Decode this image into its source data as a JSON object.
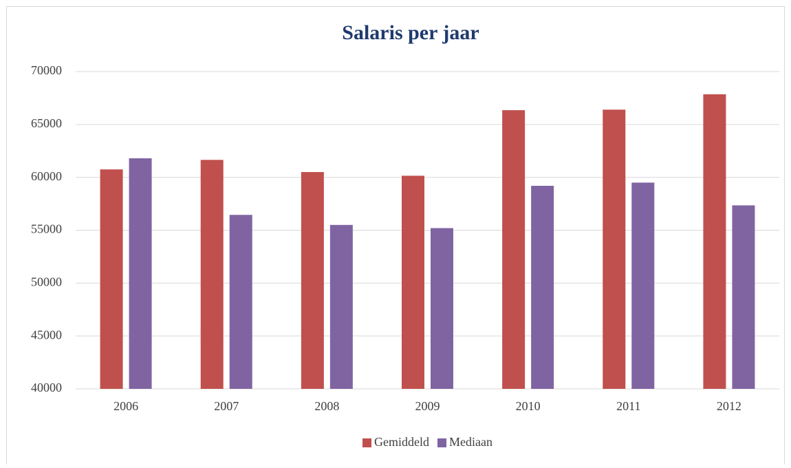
{
  "chart_data": {
    "type": "bar",
    "title": "Salaris per jaar",
    "categories": [
      "2006",
      "2007",
      "2008",
      "2009",
      "2010",
      "2011",
      "2012"
    ],
    "series": [
      {
        "name": "Gemiddeld",
        "color": "#c0504d",
        "values": [
          60750,
          61650,
          60500,
          60150,
          66350,
          66400,
          67850
        ]
      },
      {
        "name": "Mediaan",
        "color": "#8064a2",
        "values": [
          61800,
          56450,
          55500,
          55200,
          59200,
          59500,
          57350
        ]
      }
    ],
    "ylim": [
      40000,
      70000
    ],
    "yticks": [
      40000,
      45000,
      50000,
      55000,
      60000,
      65000,
      70000
    ],
    "grid": true,
    "legend": "bottom"
  }
}
